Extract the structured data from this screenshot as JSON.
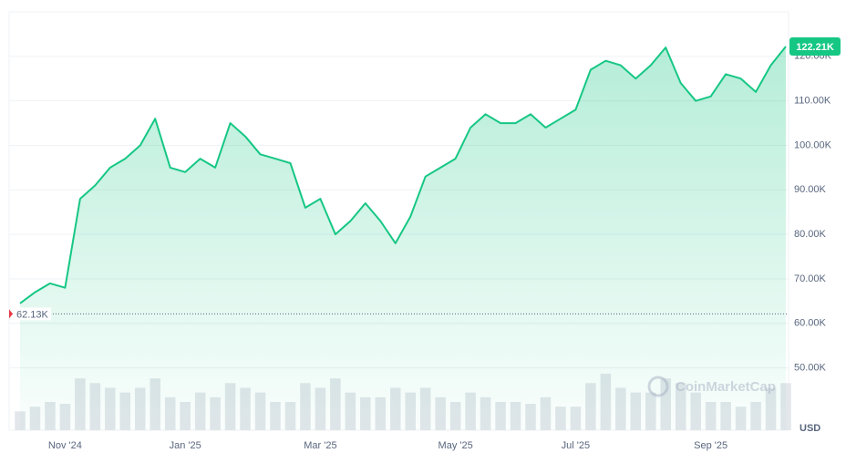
{
  "chart_data": {
    "type": "area",
    "categories": [
      null,
      null,
      null,
      "Nov '24",
      null,
      null,
      null,
      null,
      null,
      null,
      null,
      "Jan '25",
      null,
      null,
      null,
      null,
      null,
      null,
      null,
      null,
      "Mar '25",
      null,
      null,
      null,
      null,
      null,
      null,
      null,
      null,
      "May '25",
      null,
      null,
      null,
      null,
      null,
      null,
      null,
      "Jul '25",
      null,
      null,
      null,
      null,
      null,
      null,
      null,
      null,
      "Sep '25",
      null,
      null,
      null,
      null,
      null
    ],
    "series": [
      {
        "name": "Price",
        "color": "#16c784",
        "values": [
          64500,
          67000,
          69000,
          68000,
          88000,
          91000,
          95000,
          97000,
          100000,
          106000,
          95000,
          94000,
          97000,
          95000,
          105000,
          102000,
          98000,
          97000,
          96000,
          86000,
          88000,
          80000,
          83000,
          87000,
          83000,
          78000,
          84000,
          93000,
          95000,
          97000,
          104000,
          107000,
          105000,
          105000,
          107000,
          104000,
          106000,
          108000,
          117000,
          119000,
          118000,
          115000,
          118000,
          122000,
          114000,
          110000,
          111000,
          116000,
          115000,
          112000,
          118000,
          122210
        ],
        "value_labels": [
          null,
          null,
          null,
          null,
          null,
          null,
          null,
          null,
          null,
          null,
          null,
          null,
          null,
          null,
          null,
          null,
          null,
          null,
          null,
          null,
          null,
          null,
          null,
          null,
          null,
          null,
          null,
          null,
          null,
          null,
          null,
          null,
          null,
          null,
          null,
          null,
          null,
          null,
          null,
          null,
          null,
          null,
          null,
          null,
          null,
          null,
          null,
          null,
          null,
          null,
          null,
          "122.21K"
        ]
      }
    ],
    "volume": {
      "color": "#e3e6eb",
      "values": [
        20,
        25,
        30,
        28,
        55,
        50,
        45,
        40,
        45,
        55,
        35,
        30,
        40,
        35,
        50,
        45,
        40,
        30,
        30,
        50,
        45,
        55,
        40,
        35,
        35,
        45,
        40,
        45,
        35,
        30,
        40,
        35,
        30,
        30,
        28,
        35,
        25,
        25,
        50,
        60,
        45,
        40,
        40,
        55,
        50,
        40,
        30,
        30,
        25,
        30,
        45,
        50
      ]
    },
    "reference_line": {
      "value": 62130,
      "label": "62.13K"
    },
    "ylim": [
      36000,
      130000
    ],
    "yticks": [
      {
        "value": 50000,
        "label": "50.00K"
      },
      {
        "value": 60000,
        "label": "60.00K"
      },
      {
        "value": 70000,
        "label": "70.00K"
      },
      {
        "value": 80000,
        "label": "80.00K"
      },
      {
        "value": 90000,
        "label": "90.00K"
      },
      {
        "value": 100000,
        "label": "100.00K"
      },
      {
        "value": 110000,
        "label": "110.00K"
      },
      {
        "value": 120000,
        "label": "120.00K"
      }
    ],
    "y_unit": "USD",
    "watermark": "CoinMarketCap",
    "grid": true
  }
}
